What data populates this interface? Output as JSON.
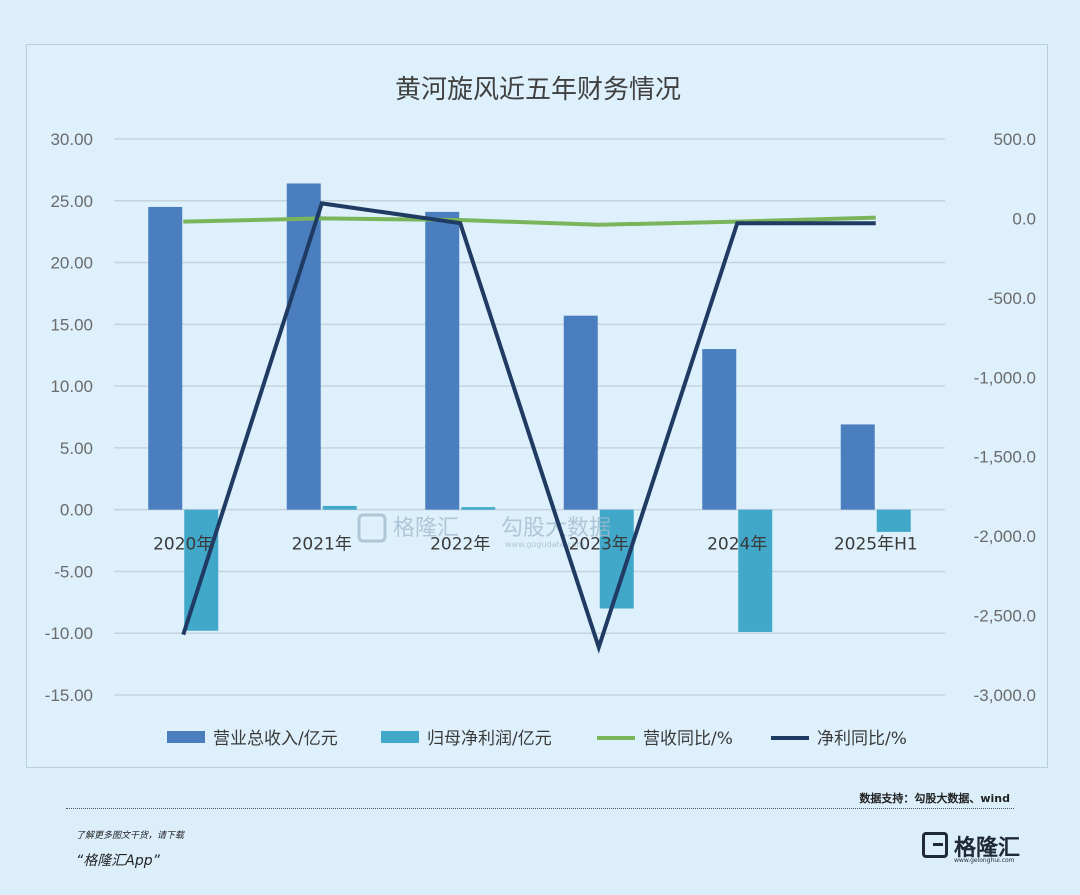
{
  "chart_data": {
    "type": "bar",
    "title": "黄河旋风近五年财务情况",
    "categories": [
      "2020年",
      "2021年",
      "2022年",
      "2023年",
      "2024年",
      "2025年H1"
    ],
    "y_left": {
      "range": [
        -15,
        30
      ],
      "ticks": [
        "30.00",
        "25.00",
        "20.00",
        "15.00",
        "10.00",
        "5.00",
        "0.00",
        "-5.00",
        "-10.00",
        "-15.00"
      ]
    },
    "y_right": {
      "range": [
        -3000,
        500
      ],
      "ticks": [
        "500.0",
        "0.0",
        "-500.0",
        "-1,000.0",
        "-1,500.0",
        "-2,000.0",
        "-2,500.0",
        "-3,000.0"
      ]
    },
    "series": [
      {
        "name": "营业总收入/亿元",
        "kind": "bar",
        "axis": "left",
        "color": "#4a7ebf",
        "values": [
          24.5,
          26.4,
          24.1,
          15.7,
          13.0,
          6.9
        ]
      },
      {
        "name": "归母净利润/亿元",
        "kind": "bar",
        "axis": "left",
        "color": "#41a8c9",
        "values": [
          -9.8,
          0.3,
          0.2,
          -8.0,
          -9.9,
          -1.8
        ]
      },
      {
        "name": "营收同比/%",
        "kind": "line",
        "axis": "right",
        "color": "#7ab55c",
        "values": [
          -20,
          0,
          -10,
          -40,
          -20,
          5
        ]
      },
      {
        "name": "净利同比/%",
        "kind": "line",
        "axis": "right",
        "color": "#1f3b63",
        "values": [
          -2620,
          95,
          -30,
          -2700,
          -30,
          -30
        ]
      }
    ],
    "grid": true,
    "legend_position": "bottom"
  },
  "watermark": {
    "brand": "格隆汇",
    "data_brand": "勾股大数据",
    "url": "www.gogudata.com"
  },
  "source": "数据支持：勾股大数据、wind",
  "footer": {
    "line1": "了解更多图文干货，请下载",
    "line2": "“格隆汇App”"
  },
  "logo": {
    "text": "格隆汇",
    "sub": "www.gelonghui.com"
  }
}
